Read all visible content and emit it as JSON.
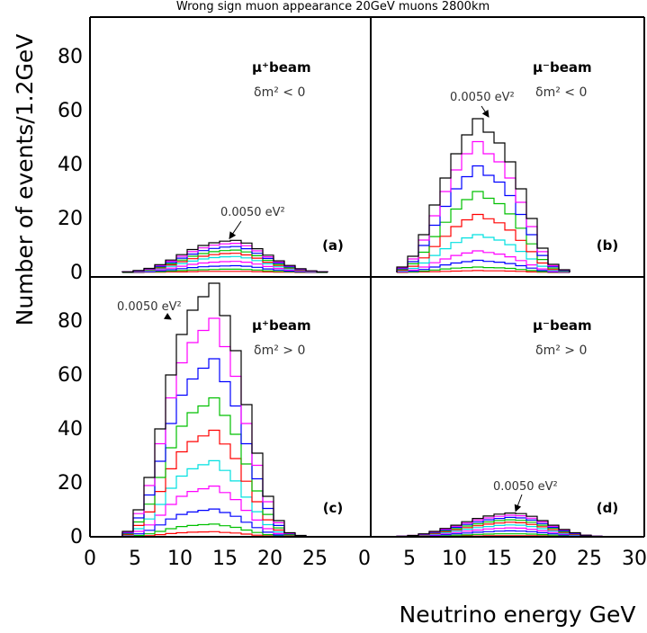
{
  "figure": {
    "title": "Wrong sign muon appearance 20GeV muons 2800km",
    "ylabel": "Number of events/1.2GeV",
    "xlabel": "Neutrino energy GeV"
  },
  "chart_data": [
    {
      "type": "histogram",
      "panel_label": "(a)",
      "beam_label": "μ⁺beam",
      "condition": "δm² < 0",
      "annotation": "0.0050 eV²",
      "bin_width": 1.2,
      "xlim": [
        0,
        30
      ],
      "ylim": [
        0,
        100
      ],
      "yticks": [
        0,
        20,
        40,
        60,
        80
      ],
      "xticks": [
        0,
        5,
        10,
        15,
        20,
        25
      ],
      "grid": false,
      "line_colors": [
        "#000000",
        "#ff00ff",
        "#0000ff",
        "#00c000",
        "#ff0000",
        "#00e0e0",
        "#ff00ff",
        "#0000ff",
        "#00c000",
        "#ff0000"
      ],
      "bin_edges": [
        3.6,
        4.8,
        6.0,
        7.2,
        8.4,
        9.6,
        10.8,
        12.0,
        13.2,
        14.4,
        15.6,
        16.8,
        18.0,
        19.2,
        20.4,
        21.6,
        22.8,
        24.0,
        25.2,
        26.4
      ],
      "series": [
        {
          "values": [
            0.2,
            0.7,
            1.5,
            2.9,
            4.6,
            6.6,
            8.5,
            10.0,
            11.0,
            11.6,
            11.9,
            10.9,
            8.8,
            6.4,
            4.3,
            2.6,
            1.4,
            0.6,
            0.2
          ]
        },
        {
          "values": [
            0.2,
            0.6,
            1.3,
            2.6,
            4.2,
            6.0,
            7.7,
            9.1,
            10.1,
            10.6,
            10.8,
            9.9,
            8.0,
            5.8,
            3.9,
            2.4,
            1.3,
            0.5,
            0.2
          ]
        },
        {
          "values": [
            0.2,
            0.5,
            1.2,
            2.3,
            3.7,
            5.3,
            6.8,
            8.1,
            8.9,
            9.4,
            9.6,
            8.8,
            7.1,
            5.2,
            3.5,
            2.1,
            1.1,
            0.5,
            0.2
          ]
        },
        {
          "values": [
            0.1,
            0.5,
            1.0,
            2.0,
            3.2,
            4.6,
            6.0,
            7.0,
            7.7,
            8.1,
            8.3,
            7.6,
            6.2,
            4.5,
            3.0,
            1.8,
            1.0,
            0.4,
            0.1
          ]
        },
        {
          "values": [
            0.1,
            0.4,
            0.9,
            1.7,
            2.8,
            4.0,
            5.1,
            6.0,
            6.6,
            7.0,
            7.1,
            6.5,
            5.3,
            3.8,
            2.6,
            1.6,
            0.8,
            0.4,
            0.1
          ]
        },
        {
          "values": [
            0.1,
            0.3,
            0.7,
            1.4,
            2.3,
            3.3,
            4.2,
            5.0,
            5.5,
            5.8,
            5.9,
            5.4,
            4.4,
            3.2,
            2.1,
            1.3,
            0.7,
            0.3,
            0.1
          ]
        },
        {
          "values": [
            0.1,
            0.2,
            0.5,
            1.0,
            1.6,
            2.3,
            3.0,
            3.5,
            3.8,
            4.0,
            4.1,
            3.8,
            3.1,
            2.2,
            1.5,
            0.9,
            0.5,
            0.2,
            0.1
          ]
        },
        {
          "values": [
            0.0,
            0.1,
            0.3,
            0.6,
            1.0,
            1.4,
            1.8,
            2.1,
            2.3,
            2.4,
            2.5,
            2.3,
            1.9,
            1.3,
            0.9,
            0.5,
            0.3,
            0.1,
            0.0
          ]
        },
        {
          "values": [
            0.0,
            0.1,
            0.2,
            0.3,
            0.5,
            0.7,
            0.9,
            1.0,
            1.1,
            1.2,
            1.2,
            1.1,
            0.9,
            0.6,
            0.4,
            0.3,
            0.1,
            0.1,
            0.0
          ]
        },
        {
          "values": [
            0.0,
            0.0,
            0.1,
            0.1,
            0.2,
            0.2,
            0.3,
            0.4,
            0.4,
            0.4,
            0.4,
            0.4,
            0.3,
            0.2,
            0.1,
            0.1,
            0.0,
            0.0,
            0.0
          ]
        }
      ]
    },
    {
      "type": "histogram",
      "panel_label": "(b)",
      "beam_label": "μ⁻beam",
      "condition": "δm² < 0",
      "annotation": "0.0050 eV²",
      "bin_width": 1.2,
      "xlim": [
        0,
        30
      ],
      "ylim": [
        0,
        100
      ],
      "yticks": [
        0,
        20,
        40,
        60,
        80
      ],
      "xticks": [
        0,
        5,
        10,
        15,
        20,
        25,
        30
      ],
      "grid": false,
      "line_colors": [
        "#000000",
        "#ff00ff",
        "#0000ff",
        "#00c000",
        "#ff0000",
        "#00e0e0",
        "#ff00ff",
        "#0000ff",
        "#00c000",
        "#ff0000"
      ],
      "bin_edges": [
        3.6,
        4.8,
        6.0,
        7.2,
        8.4,
        9.6,
        10.8,
        12.0,
        13.2,
        14.4,
        15.6,
        16.8,
        18.0,
        19.2,
        20.4,
        21.6,
        22.8
      ],
      "series": [
        {
          "values": [
            2,
            6,
            14,
            25,
            35,
            44,
            51,
            57,
            52,
            48,
            41,
            31,
            20,
            9,
            3,
            1
          ]
        },
        {
          "values": [
            1.7,
            5,
            12,
            21,
            30,
            38,
            44,
            48.5,
            44,
            41,
            35,
            26,
            17,
            7.7,
            2.5,
            0.9
          ]
        },
        {
          "values": [
            1.4,
            4,
            10,
            17.5,
            24.5,
            31,
            35.5,
            39.5,
            36,
            33.5,
            28.5,
            21.5,
            14,
            6.3,
            2.1,
            0.7
          ]
        },
        {
          "values": [
            1.1,
            3.2,
            7.5,
            13.3,
            18.6,
            23.5,
            27,
            30,
            27.5,
            25.5,
            21.7,
            16.4,
            10.6,
            4.8,
            1.6,
            0.5
          ]
        },
        {
          "values": [
            0.8,
            2.3,
            5.4,
            9.6,
            13.4,
            17,
            19.5,
            21.5,
            19.9,
            18.4,
            15.7,
            11.9,
            7.7,
            3.5,
            1.1,
            0.4
          ]
        },
        {
          "values": [
            0.5,
            1.5,
            3.5,
            6.3,
            8.8,
            11.1,
            12.8,
            14,
            13,
            12,
            10.3,
            7.8,
            5,
            2.3,
            0.8,
            0.3
          ]
        },
        {
          "values": [
            0.3,
            0.9,
            2,
            3.6,
            5,
            6.3,
            7.2,
            8,
            7.4,
            6.8,
            5.8,
            4.4,
            2.8,
            1.3,
            0.4,
            0.1
          ]
        },
        {
          "values": [
            0.2,
            0.5,
            1.1,
            2,
            2.8,
            3.5,
            4,
            4.5,
            4.1,
            3.8,
            3.3,
            2.5,
            1.6,
            0.7,
            0.2,
            0.1
          ]
        },
        {
          "values": [
            0.1,
            0.2,
            0.5,
            0.9,
            1.3,
            1.6,
            1.8,
            2,
            1.8,
            1.7,
            1.5,
            1.1,
            0.7,
            0.3,
            0.1,
            0.0
          ]
        },
        {
          "values": [
            0.0,
            0.1,
            0.2,
            0.3,
            0.4,
            0.5,
            0.6,
            0.7,
            0.6,
            0.6,
            0.5,
            0.4,
            0.2,
            0.1,
            0.0,
            0.0
          ]
        }
      ]
    },
    {
      "type": "histogram",
      "panel_label": "(c)",
      "beam_label": "μ⁺beam",
      "condition": "δm² > 0",
      "annotation": "0.0050 eV²",
      "bin_width": 1.2,
      "xlim": [
        0,
        30
      ],
      "ylim": [
        0,
        100
      ],
      "yticks": [
        0,
        20,
        40,
        60,
        80
      ],
      "xticks": [
        0,
        5,
        10,
        15,
        20,
        25
      ],
      "grid": false,
      "line_colors": [
        "#000000",
        "#ff00ff",
        "#0000ff",
        "#00c000",
        "#ff0000",
        "#00e0e0",
        "#ff00ff",
        "#0000ff",
        "#00c000",
        "#ff0000"
      ],
      "bin_edges": [
        3.6,
        4.8,
        6.0,
        7.2,
        8.4,
        9.6,
        10.8,
        12.0,
        13.2,
        14.4,
        15.6,
        16.8,
        18.0,
        19.2,
        20.4,
        21.6,
        22.8,
        24.0
      ],
      "series": [
        {
          "values": [
            2,
            10,
            22,
            40,
            60,
            75,
            84,
            89,
            94,
            82,
            69,
            49,
            31,
            15,
            6,
            1.5,
            0.5
          ]
        },
        {
          "values": [
            1.7,
            8.6,
            19,
            34.5,
            51.5,
            64.5,
            72,
            76.5,
            81,
            70.5,
            59.5,
            42,
            26.5,
            13,
            5.2,
            1.3,
            0.4
          ]
        },
        {
          "values": [
            1.4,
            7,
            15.5,
            28,
            42,
            52.5,
            58.5,
            62.5,
            66,
            57.5,
            48.5,
            34.5,
            21.5,
            10.5,
            4.2,
            1.1,
            0.4
          ]
        },
        {
          "values": [
            1.1,
            5.5,
            12.1,
            22,
            33,
            41,
            46,
            48.5,
            51.5,
            45,
            38,
            27,
            17,
            8.3,
            3.3,
            0.8,
            0.3
          ]
        },
        {
          "values": [
            0.8,
            4.2,
            9.2,
            16.8,
            25.2,
            31.5,
            35.3,
            37.4,
            39.5,
            34.4,
            29,
            20.6,
            13,
            6.3,
            2.5,
            0.6,
            0.2
          ]
        },
        {
          "values": [
            0.6,
            3,
            6.6,
            12,
            18,
            22.5,
            25.2,
            26.7,
            28.2,
            24.6,
            20.7,
            14.7,
            9.3,
            4.5,
            1.8,
            0.5,
            0.2
          ]
        },
        {
          "values": [
            0.4,
            2,
            4.4,
            8,
            12,
            15,
            16.8,
            17.8,
            18.8,
            16.4,
            13.8,
            9.8,
            6.2,
            3,
            1.2,
            0.3,
            0.1
          ]
        },
        {
          "values": [
            0.2,
            1.1,
            2.4,
            4.4,
            6.6,
            8.3,
            9.2,
            9.8,
            10.3,
            9,
            7.6,
            5.4,
            3.4,
            1.7,
            0.7,
            0.2,
            0.1
          ]
        },
        {
          "values": [
            0.1,
            0.5,
            1.1,
            2,
            3,
            3.8,
            4.2,
            4.5,
            4.7,
            4.1,
            3.5,
            2.5,
            1.6,
            0.8,
            0.3,
            0.1,
            0.0
          ]
        },
        {
          "values": [
            0.0,
            0.2,
            0.4,
            0.8,
            1.2,
            1.5,
            1.7,
            1.8,
            1.9,
            1.6,
            1.4,
            1.0,
            0.6,
            0.3,
            0.1,
            0.0,
            0.0
          ]
        }
      ]
    },
    {
      "type": "histogram",
      "panel_label": "(d)",
      "beam_label": "μ⁻beam",
      "condition": "δm² > 0",
      "annotation": "0.0050 eV²",
      "bin_width": 1.2,
      "xlim": [
        0,
        30
      ],
      "ylim": [
        0,
        100
      ],
      "yticks": [
        0,
        20,
        40,
        60,
        80
      ],
      "xticks": [
        0,
        5,
        10,
        15,
        20,
        25,
        30
      ],
      "grid": false,
      "line_colors": [
        "#000000",
        "#ff00ff",
        "#0000ff",
        "#00c000",
        "#ff0000",
        "#00e0e0",
        "#ff00ff",
        "#0000ff",
        "#00c000",
        "#ff0000"
      ],
      "bin_edges": [
        3.6,
        4.8,
        6.0,
        7.2,
        8.4,
        9.6,
        10.8,
        12.0,
        13.2,
        14.4,
        15.6,
        16.8,
        18.0,
        19.2,
        20.4,
        21.6,
        22.8,
        24.0,
        25.2,
        26.4
      ],
      "series": [
        {
          "values": [
            0.2,
            0.5,
            1.1,
            2.0,
            3.1,
            4.3,
            5.6,
            6.8,
            7.7,
            8.4,
            8.8,
            8.6,
            7.6,
            6.0,
            4.3,
            2.7,
            1.5,
            0.6,
            0.2
          ]
        },
        {
          "values": [
            0.2,
            0.5,
            1.0,
            1.8,
            2.8,
            3.9,
            5.1,
            6.2,
            7.0,
            7.6,
            8.0,
            7.8,
            6.9,
            5.5,
            3.9,
            2.5,
            1.4,
            0.6,
            0.2
          ]
        },
        {
          "values": [
            0.2,
            0.4,
            0.9,
            1.6,
            2.5,
            3.5,
            4.6,
            5.5,
            6.3,
            6.8,
            7.2,
            7.0,
            6.2,
            4.9,
            3.5,
            2.2,
            1.2,
            0.5,
            0.2
          ]
        },
        {
          "values": [
            0.1,
            0.4,
            0.8,
            1.4,
            2.2,
            3.0,
            4.0,
            4.8,
            5.5,
            6.0,
            6.3,
            6.1,
            5.4,
            4.3,
            3.1,
            1.9,
            1.1,
            0.4,
            0.1
          ]
        },
        {
          "values": [
            0.1,
            0.3,
            0.7,
            1.2,
            1.9,
            2.6,
            3.4,
            4.1,
            4.7,
            5.1,
            5.4,
            5.2,
            4.6,
            3.7,
            2.6,
            1.6,
            0.9,
            0.4,
            0.1
          ]
        },
        {
          "values": [
            0.1,
            0.3,
            0.6,
            1.0,
            1.5,
            2.1,
            2.8,
            3.4,
            3.8,
            4.2,
            4.4,
            4.3,
            3.8,
            3.0,
            2.1,
            1.3,
            0.7,
            0.3,
            0.1
          ]
        },
        {
          "values": [
            0.1,
            0.2,
            0.4,
            0.7,
            1.1,
            1.6,
            2.1,
            2.5,
            2.9,
            3.1,
            3.3,
            3.2,
            2.8,
            2.2,
            1.6,
            1.0,
            0.6,
            0.2,
            0.1
          ]
        },
        {
          "values": [
            0.0,
            0.1,
            0.3,
            0.5,
            0.8,
            1.1,
            1.4,
            1.7,
            1.9,
            2.1,
            2.2,
            2.1,
            1.9,
            1.5,
            1.1,
            0.7,
            0.4,
            0.2,
            0.0
          ]
        },
        {
          "values": [
            0.0,
            0.1,
            0.2,
            0.3,
            0.4,
            0.6,
            0.7,
            0.9,
            1.0,
            1.1,
            1.1,
            1.1,
            1.0,
            0.8,
            0.6,
            0.4,
            0.2,
            0.1,
            0.0
          ]
        },
        {
          "values": [
            0.0,
            0.0,
            0.1,
            0.1,
            0.2,
            0.2,
            0.3,
            0.3,
            0.4,
            0.4,
            0.4,
            0.4,
            0.4,
            0.3,
            0.2,
            0.1,
            0.1,
            0.0,
            0.0
          ]
        }
      ]
    }
  ]
}
